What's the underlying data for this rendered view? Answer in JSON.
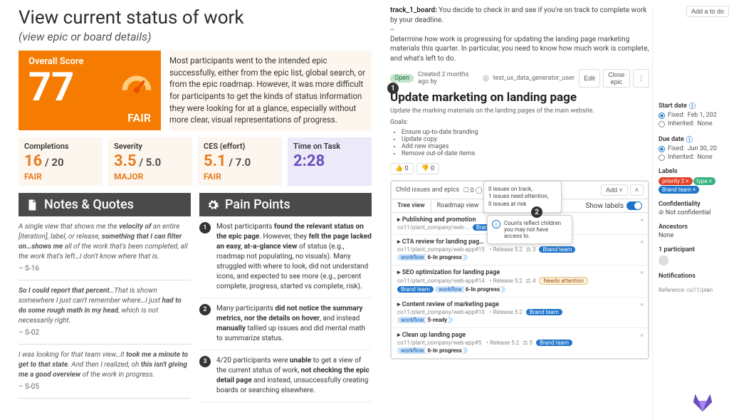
{
  "header": {
    "title": "View current status of work",
    "subtitle": "(view epic or board details)"
  },
  "score": {
    "label": "Overall Score",
    "value": "77",
    "rating": "FAIR",
    "gauge_color": "#ffb74d",
    "needle_color": "#e65100"
  },
  "summary_text": "Most participants went to the intended epic successfully, either from the epic list, global search, or from the epic roadmap. However, it was more difficult for participants to get the kinds of status information they were looking for at a glance, especially without more clear, visual representations of progress.",
  "metrics": [
    {
      "label": "Completions",
      "value": "16",
      "denom": " / 20",
      "rating": "FAIR",
      "color": "#e67e22",
      "bg": "#fdf6ef"
    },
    {
      "label": "Severity",
      "value": "3.5",
      "denom": " / 5.0",
      "rating": "MAJOR",
      "color": "#e67e22",
      "bg": "#fdf6ef"
    },
    {
      "label": "CES (effort)",
      "value": "5.1",
      "denom": " / 7.0",
      "rating": "FAIR",
      "color": "#e67e22",
      "bg": "#fdf6ef"
    },
    {
      "label": "Time on Task",
      "value": "2:28",
      "denom": "",
      "rating": "",
      "color": "#6b4fbb",
      "bg": "#ece9f9"
    }
  ],
  "notes_header": "Notes & Quotes",
  "pain_header": "Pain Points",
  "quotes": [
    {
      "text": "A single view that shows me the <b>velocity of</b> an entire [iteration], label, or release, <b>something that I can filter on…shows me</b> all of the work that's been completed, all the work that's left…I don't know where that is.",
      "src": "– S-16"
    },
    {
      "text": "<b>So I could report that percent</b>…That is shown somewhere I just can't remember where…I just <b>had to do some rough math in my head</b>, which is not necessarily right.",
      "src": "– S-02"
    },
    {
      "text": "I was looking for that team view…it <b>took me a minute to get to that state</b>. And then I realized, oh <b>this isn't giving me a good overview</b> of the work in progress.",
      "src": "– S-05"
    }
  ],
  "pain_points": [
    "Most participants <b>found the relevant status on the epic page</b>. However, they <b>felt the page lacked an easy, at-a-glance view</b> of status (e.g., roadmap not populating, no visuals). Many struggled with where to look, did not understand icons, and expected to see more (e.g., percent complete, progress, started vs complete, risk).",
    "Many participants <b>did not notice the summary metrics, nor the details on hover</b>, and instead <b>manually</b> tallied up issues and did mental math to summarize status.",
    "4/20 participants were <b>unable</b> to get a view of the current status of work, <b>not checking the epic detail page</b> and instead, unsuccessfully creating boards or searching elsewhere."
  ],
  "task": {
    "label": "track_1_board:",
    "text": "You decide to check in and see if you're on track to complete work by your deadline.\n--\nDetermine how work is progressing for updating the landing page marketing materials this quarter. In particular, you need to know how much work is complete, and what's left to do."
  },
  "epic": {
    "open_badge": "Open",
    "created": "Created 2 months ago by",
    "author": "test_ux_data_generator_user",
    "edit": "Edit",
    "close": "Close epic",
    "more": "⋮",
    "title": "Update marketing on landing page",
    "subtitle": "Update the marking materials on the landing pages of the main website.",
    "goals_label": "Goals:",
    "goals": [
      "Ensure up-to-date branding",
      "Update copy",
      "Add new images",
      "Remove out-of-date items"
    ],
    "thumbs_up": "👍 0",
    "thumbs_down": "👎 0",
    "child_label": "Child issues and epics",
    "child_counts": "🞎 0  ◯ 9  △ 21  ● 1",
    "add_btn": "Add",
    "tabs": [
      "Tree view",
      "Roadmap view"
    ],
    "show_labels": "Show labels",
    "status_tooltip": "0 issues on track,\n1 issues need attention,\n0 issues at risk",
    "counts_tooltip": "Counts reflect children you may not have access to."
  },
  "issues": [
    {
      "title": "Publishing and promotion",
      "ref": "co11/plant_company/web-…",
      "labels": [
        {
          "t": "Brand team",
          "c": "#1f75cb"
        }
      ]
    },
    {
      "title": "CTA review for landing pag…",
      "ref": "co11/plant_company/web-app#15",
      "release": "Release 5.2",
      "weight": "3",
      "labels": [
        {
          "t": "Brand team",
          "c": "#1f75cb"
        }
      ],
      "workflow": "6-In progress"
    },
    {
      "title": "SEO optimization for landing page",
      "ref": "co11/plant_company/web-app#14",
      "release": "Release 5.2",
      "weight": "4",
      "attn": "Needs attention",
      "labels": [
        {
          "t": "Brand team",
          "c": "#1f75cb"
        }
      ],
      "workflow": "6-In progress"
    },
    {
      "title": "Content review of marketing page",
      "ref": "co11/plant_company/web-app#13",
      "release": "Release 5.2",
      "labels": [
        {
          "t": "Brand team",
          "c": "#1f75cb"
        }
      ],
      "workflow": "5-ready"
    },
    {
      "title": "Clean up landing page",
      "ref": "co11/plant_company/web-app#5",
      "release": "Release 5.2",
      "weight": "5",
      "labels": [
        {
          "t": "Brand team",
          "c": "#1f75cb"
        }
      ],
      "workflow": "6-In progress"
    }
  ],
  "sidebar": {
    "add_todo": "Add a to do",
    "start_date_label": "Start date",
    "start_fixed": "Fixed:",
    "start_fixed_val": "Feb 1, 202",
    "inherited": "Inherited:",
    "inherited_val": "None",
    "due_date_label": "Due date",
    "due_fixed_val": "Jun 30, 20",
    "labels_label": "Labels",
    "labels": [
      {
        "t": "priority 2",
        "c": "#e24329"
      },
      {
        "t": "type",
        "c": "#36b37e"
      },
      {
        "t": "Brand team",
        "c": "#1f75cb"
      }
    ],
    "confidentiality_label": "Confidentiality",
    "confidentiality_val": "Not confidential",
    "ancestors_label": "Ancestors",
    "ancestors_val": "None",
    "participants_label": "1 participant",
    "notifications_label": "Notifications",
    "reference": "Reference: co11/plan"
  }
}
